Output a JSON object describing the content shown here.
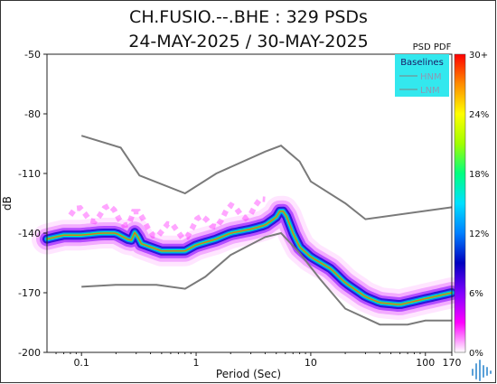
{
  "chart_data": {
    "type": "heatmap",
    "title": "CH.FUSIO.--.BHE : 329 PSDs",
    "subtitle": "24-MAY-2025 / 30-MAY-2025",
    "xlabel": "Period (Sec)",
    "ylabel": "dB",
    "x_scale": "log",
    "xlim": [
      0.05,
      170
    ],
    "ylim": [
      -200,
      -50
    ],
    "x_ticks": [
      {
        "value": 0.1,
        "label": "0.1"
      },
      {
        "value": 1,
        "label": "1"
      },
      {
        "value": 10,
        "label": "10"
      },
      {
        "value": 100,
        "label": "100"
      },
      {
        "value": 170,
        "label": "170"
      }
    ],
    "y_ticks": [
      -50,
      -80,
      -110,
      -140,
      -170,
      -200
    ],
    "colorbar": {
      "title": "PSD PDF",
      "labels": [
        "30+",
        "24%",
        "18%",
        "12%",
        "6%",
        "0%"
      ],
      "stops": [
        "#ff0000",
        "#ff8c00",
        "#ffff00",
        "#a0ff00",
        "#00ff80",
        "#00e0ff",
        "#0080ff",
        "#0000c0",
        "#8000ff",
        "#ff00ff",
        "#ffffff"
      ]
    },
    "legend": {
      "title": "Baselines",
      "entries": [
        "HNM",
        "LNM"
      ],
      "placement": "top-right",
      "background": "#33e8ee"
    },
    "baselines": {
      "HNM": [
        [
          0.1,
          -91
        ],
        [
          0.22,
          -97
        ],
        [
          0.32,
          -111
        ],
        [
          0.8,
          -120
        ],
        [
          1.5,
          -110
        ],
        [
          4,
          -99
        ],
        [
          5.5,
          -96
        ],
        [
          8,
          -104
        ],
        [
          10,
          -114
        ],
        [
          20,
          -125
        ],
        [
          30,
          -133
        ],
        [
          170,
          -127
        ]
      ],
      "LNM": [
        [
          0.1,
          -167
        ],
        [
          0.2,
          -166
        ],
        [
          0.45,
          -166
        ],
        [
          0.8,
          -168
        ],
        [
          1.2,
          -162
        ],
        [
          2,
          -151
        ],
        [
          4,
          -142
        ],
        [
          5.5,
          -140
        ],
        [
          8,
          -150
        ],
        [
          12,
          -163
        ],
        [
          20,
          -178
        ],
        [
          40,
          -186
        ],
        [
          70,
          -186
        ],
        [
          100,
          -184
        ],
        [
          170,
          -184
        ]
      ]
    },
    "ridge": {
      "description_free_points": [
        [
          0.05,
          -143
        ],
        [
          0.07,
          -141
        ],
        [
          0.1,
          -141
        ],
        [
          0.15,
          -140
        ],
        [
          0.2,
          -140
        ],
        [
          0.27,
          -144
        ],
        [
          0.3,
          -138
        ],
        [
          0.32,
          -145
        ],
        [
          0.4,
          -147
        ],
        [
          0.5,
          -149
        ],
        [
          0.6,
          -149
        ],
        [
          0.8,
          -149
        ],
        [
          1,
          -146
        ],
        [
          1.5,
          -143
        ],
        [
          2,
          -140
        ],
        [
          3,
          -138
        ],
        [
          4,
          -136
        ],
        [
          5,
          -132
        ],
        [
          5.5,
          -128
        ],
        [
          6,
          -130
        ],
        [
          7,
          -140
        ],
        [
          8,
          -147
        ],
        [
          10,
          -152
        ],
        [
          15,
          -158
        ],
        [
          20,
          -165
        ],
        [
          30,
          -172
        ],
        [
          40,
          -175
        ],
        [
          60,
          -176
        ],
        [
          100,
          -173
        ],
        [
          170,
          -170
        ]
      ]
    }
  }
}
